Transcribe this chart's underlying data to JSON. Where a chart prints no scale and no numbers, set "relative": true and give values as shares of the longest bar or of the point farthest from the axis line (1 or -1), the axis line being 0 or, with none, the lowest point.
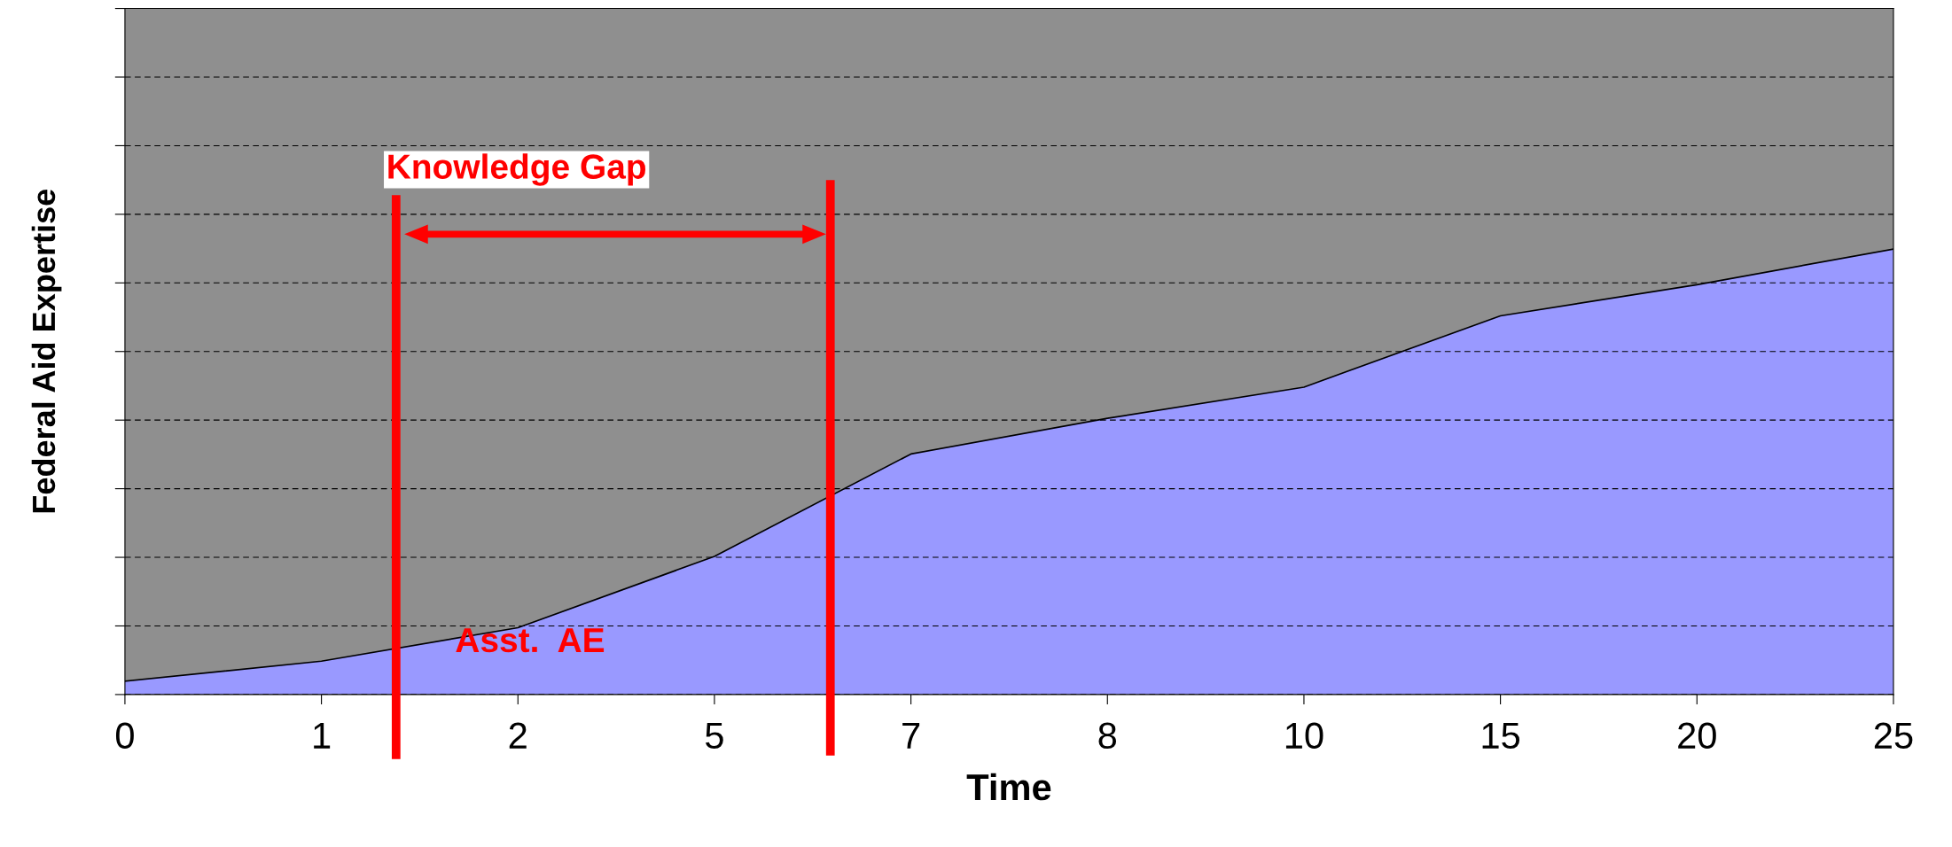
{
  "chart_data": {
    "type": "area",
    "relative": true,
    "xlabel": "Time",
    "ylabel": "Federal Aid Expertise",
    "categories": [
      "0",
      "1",
      "2",
      "5",
      "7",
      "8",
      "10",
      "15",
      "20",
      "25"
    ],
    "series": [
      {
        "color": "#9999ff",
        "values": [
          0.03,
          0.075,
          0.15,
          0.31,
          0.54,
          0.62,
          0.69,
          0.85,
          0.92,
          1
        ]
      }
    ],
    "annotations": [
      "Knowledge Gap",
      "Asst.  AE"
    ],
    "grid": "y"
  }
}
